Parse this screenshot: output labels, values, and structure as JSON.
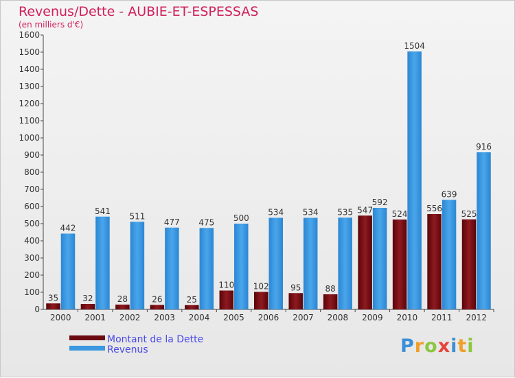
{
  "chart_title": "Revenus/Dette - AUBIE-ET-ESPESSAS",
  "chart_subtitle": "(en milliers d'€)",
  "logo": {
    "letters": [
      {
        "ch": "P",
        "color": "#3b8fd6"
      },
      {
        "ch": "r",
        "color": "#f0a02a"
      },
      {
        "ch": "o",
        "color": "#8dc63f"
      },
      {
        "ch": "x",
        "color": "#e8433a"
      },
      {
        "ch": "i",
        "color": "#3b8fd6"
      },
      {
        "ch": "t",
        "color": "#f0a02a"
      },
      {
        "ch": "i",
        "color": "#8dc63f"
      }
    ]
  },
  "chart_data": {
    "type": "bar",
    "title": "Revenus/Dette - AUBIE-ET-ESPESSAS",
    "subtitle": "(en milliers d'€)",
    "xlabel": "",
    "ylabel": "",
    "ylim": [
      0,
      1600
    ],
    "yticks": [
      0,
      100,
      200,
      300,
      400,
      500,
      600,
      700,
      800,
      900,
      1000,
      1100,
      1200,
      1300,
      1400,
      1500,
      1600
    ],
    "grid": false,
    "legend_position": "bottom-left",
    "categories": [
      "2000",
      "2001",
      "2002",
      "2003",
      "2004",
      "2005",
      "2006",
      "2007",
      "2008",
      "2009",
      "2010",
      "2011",
      "2012"
    ],
    "series": [
      {
        "name": "Montant de la Dette",
        "color": "#7a0d12",
        "values": [
          35,
          32,
          28,
          26,
          25,
          110,
          102,
          95,
          88,
          547,
          524,
          556,
          525
        ]
      },
      {
        "name": "Revenus",
        "color": "#3a97e0",
        "values": [
          442,
          541,
          511,
          477,
          475,
          500,
          534,
          534,
          535,
          592,
          1504,
          639,
          916
        ]
      }
    ]
  }
}
